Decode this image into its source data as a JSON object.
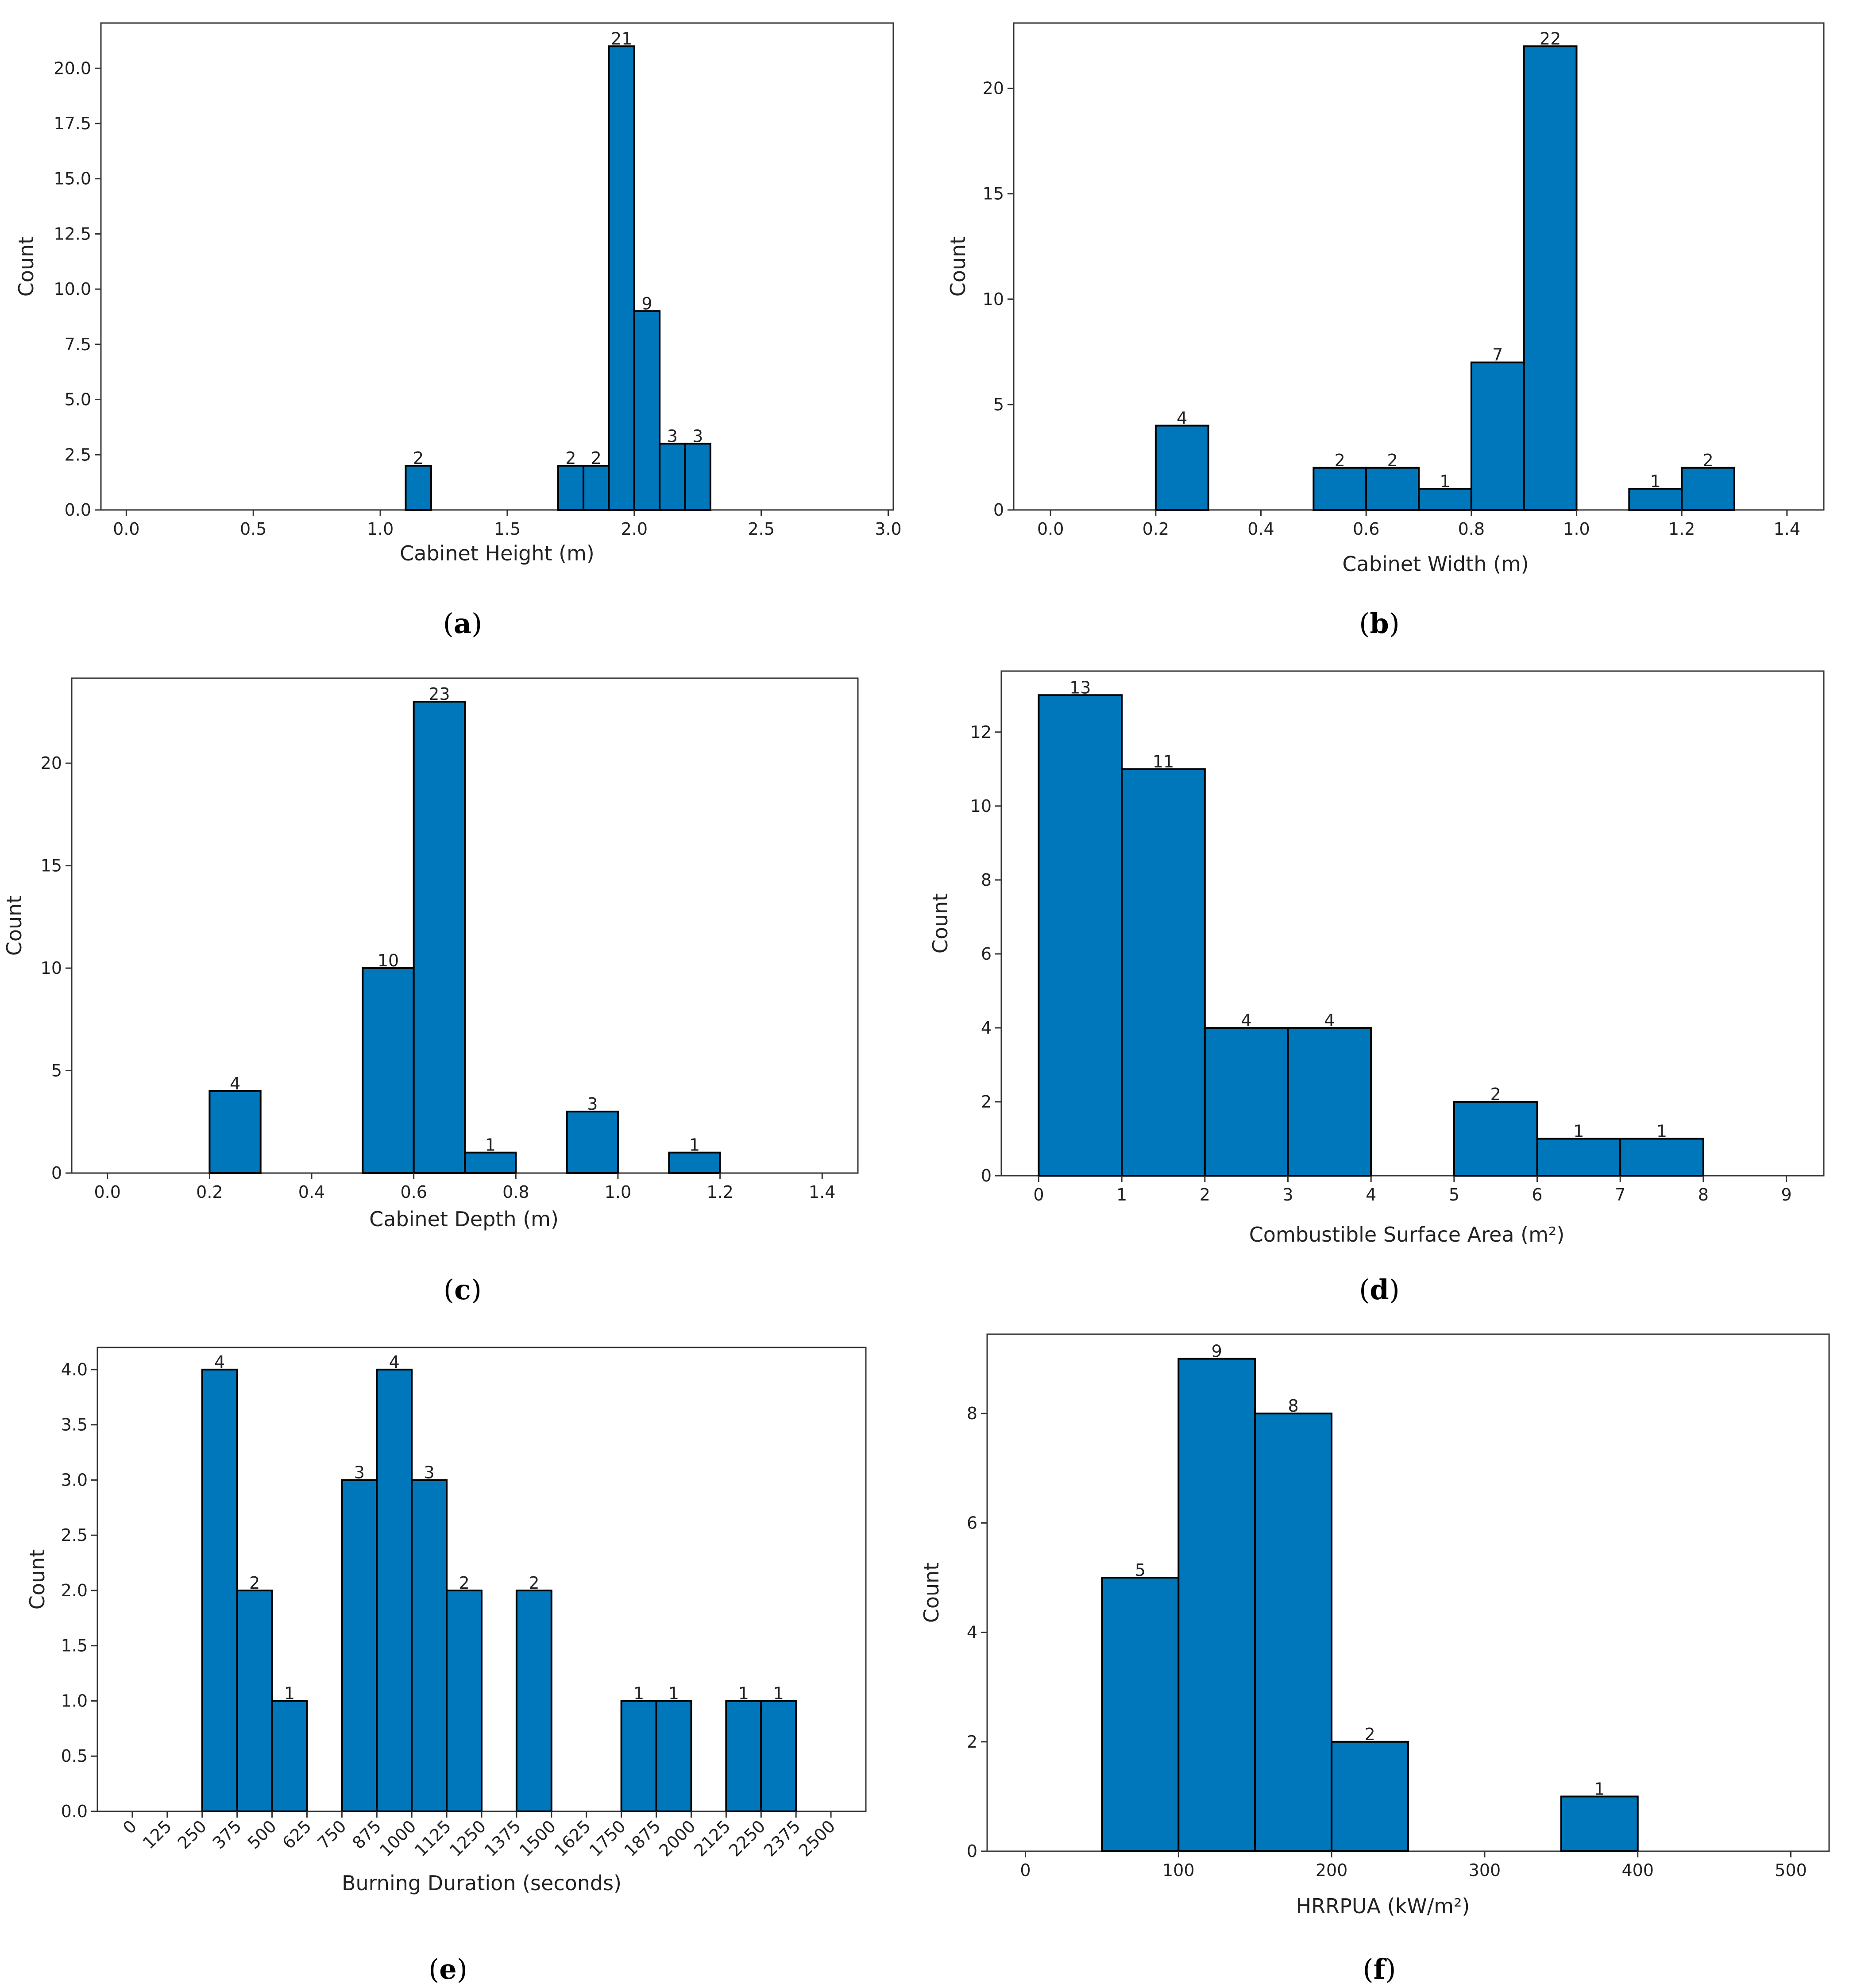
{
  "chart_data": [
    {
      "type": "bar",
      "panel": "a",
      "xlabel": "Cabinet Height (m)",
      "ylabel": "Count",
      "xlim": [
        -0.1,
        3.02
      ],
      "ylim": [
        0,
        21
      ],
      "xticks": [
        0.0,
        0.5,
        1.0,
        1.5,
        2.0,
        2.5,
        3.0
      ],
      "xtick_labels": [
        "0.0",
        "0.5",
        "1.0",
        "1.5",
        "2.0",
        "2.5",
        "3.0"
      ],
      "yticks": [
        0,
        2.5,
        5,
        7.5,
        10,
        12.5,
        15,
        17.5,
        20
      ],
      "ytick_labels": [
        "0.0",
        "2.5",
        "5.0",
        "7.5",
        "10.0",
        "12.5",
        "15.0",
        "17.5",
        "20.0"
      ],
      "bins": [
        {
          "x0": 1.1,
          "x1": 1.2,
          "count": 2,
          "label": "2"
        },
        {
          "x0": 1.7,
          "x1": 1.8,
          "count": 2,
          "label": "2"
        },
        {
          "x0": 1.8,
          "x1": 1.9,
          "count": 2,
          "label": "2"
        },
        {
          "x0": 1.9,
          "x1": 2.0,
          "count": 21,
          "label": "21"
        },
        {
          "x0": 2.0,
          "x1": 2.1,
          "count": 9,
          "label": "9"
        },
        {
          "x0": 2.1,
          "x1": 2.2,
          "count": 3,
          "label": "3"
        },
        {
          "x0": 2.2,
          "x1": 2.3,
          "count": 3,
          "label": "3"
        }
      ]
    },
    {
      "type": "bar",
      "panel": "b",
      "xlabel": "Cabinet Width (m)",
      "ylabel": "Count",
      "xlim": [
        -0.07,
        1.47
      ],
      "ylim": [
        0,
        22
      ],
      "xticks": [
        0.0,
        0.2,
        0.4,
        0.6,
        0.8,
        1.0,
        1.2,
        1.4
      ],
      "xtick_labels": [
        "0.0",
        "0.2",
        "0.4",
        "0.6",
        "0.8",
        "1.0",
        "1.2",
        "1.4"
      ],
      "yticks": [
        0,
        5,
        10,
        15,
        20
      ],
      "ytick_labels": [
        "0",
        "5",
        "10",
        "15",
        "20"
      ],
      "bins": [
        {
          "x0": 0.2,
          "x1": 0.3,
          "count": 4,
          "label": "4"
        },
        {
          "x0": 0.5,
          "x1": 0.6,
          "count": 2,
          "label": "2"
        },
        {
          "x0": 0.6,
          "x1": 0.7,
          "count": 2,
          "label": "2"
        },
        {
          "x0": 0.7,
          "x1": 0.8,
          "count": 1,
          "label": "1"
        },
        {
          "x0": 0.8,
          "x1": 0.9,
          "count": 7,
          "label": "7"
        },
        {
          "x0": 0.9,
          "x1": 1.0,
          "count": 22,
          "label": "22"
        },
        {
          "x0": 1.1,
          "x1": 1.2,
          "count": 1,
          "label": "1"
        },
        {
          "x0": 1.2,
          "x1": 1.3,
          "count": 2,
          "label": "2"
        }
      ]
    },
    {
      "type": "bar",
      "panel": "c",
      "xlabel": "Cabinet Depth (m)",
      "ylabel": "Count",
      "xlim": [
        -0.07,
        1.47
      ],
      "ylim": [
        0,
        23
      ],
      "xticks": [
        0.0,
        0.2,
        0.4,
        0.6,
        0.8,
        1.0,
        1.2,
        1.4
      ],
      "xtick_labels": [
        "0.0",
        "0.2",
        "0.4",
        "0.6",
        "0.8",
        "1.0",
        "1.2",
        "1.4"
      ],
      "yticks": [
        0,
        5,
        10,
        15,
        20
      ],
      "ytick_labels": [
        "0",
        "5",
        "10",
        "15",
        "20"
      ],
      "bins": [
        {
          "x0": 0.2,
          "x1": 0.3,
          "count": 4,
          "label": "4"
        },
        {
          "x0": 0.5,
          "x1": 0.6,
          "count": 10,
          "label": "10"
        },
        {
          "x0": 0.6,
          "x1": 0.7,
          "count": 23,
          "label": "23"
        },
        {
          "x0": 0.7,
          "x1": 0.8,
          "count": 1,
          "label": "1"
        },
        {
          "x0": 0.9,
          "x1": 1.0,
          "count": 3,
          "label": "3"
        },
        {
          "x0": 1.1,
          "x1": 1.2,
          "count": 1,
          "label": "1"
        }
      ]
    },
    {
      "type": "bar",
      "panel": "d",
      "xlabel": "Combustible Surface Area (m²)",
      "ylabel": "Count",
      "xlim": [
        -0.45,
        9.45
      ],
      "ylim": [
        0,
        13
      ],
      "xticks": [
        0,
        1,
        2,
        3,
        4,
        5,
        6,
        7,
        8,
        9
      ],
      "xtick_labels": [
        "0",
        "1",
        "2",
        "3",
        "4",
        "5",
        "6",
        "7",
        "8",
        "9"
      ],
      "yticks": [
        0,
        2,
        4,
        6,
        8,
        10,
        12
      ],
      "ytick_labels": [
        "0",
        "2",
        "4",
        "6",
        "8",
        "10",
        "12"
      ],
      "bins": [
        {
          "x0": 0,
          "x1": 1,
          "count": 13,
          "label": "13"
        },
        {
          "x0": 1,
          "x1": 2,
          "count": 11,
          "label": "11"
        },
        {
          "x0": 2,
          "x1": 3,
          "count": 4,
          "label": "4"
        },
        {
          "x0": 3,
          "x1": 4,
          "count": 4,
          "label": "4"
        },
        {
          "x0": 5,
          "x1": 6,
          "count": 2,
          "label": "2"
        },
        {
          "x0": 6,
          "x1": 7,
          "count": 1,
          "label": "1"
        },
        {
          "x0": 7,
          "x1": 8,
          "count": 1,
          "label": "1"
        }
      ]
    },
    {
      "type": "bar",
      "panel": "e",
      "xlabel": "Burning Duration (seconds)",
      "ylabel": "Count",
      "xlim": [
        -125,
        2625
      ],
      "ylim": [
        0,
        4
      ],
      "xticks": [
        0,
        125,
        250,
        375,
        500,
        625,
        750,
        875,
        1000,
        1125,
        1250,
        1375,
        1500,
        1625,
        1750,
        1875,
        2000,
        2125,
        2250,
        2375,
        2500
      ],
      "xtick_labels": [
        "0",
        "125",
        "250",
        "375",
        "500",
        "625",
        "750",
        "875",
        "1000",
        "1125",
        "1250",
        "1375",
        "1500",
        "1625",
        "1750",
        "1875",
        "2000",
        "2125",
        "2250",
        "2375",
        "2500"
      ],
      "yticks": [
        0,
        0.5,
        1,
        1.5,
        2,
        2.5,
        3,
        3.5,
        4
      ],
      "ytick_labels": [
        "0.0",
        "0.5",
        "1.0",
        "1.5",
        "2.0",
        "2.5",
        "3.0",
        "3.5",
        "4.0"
      ],
      "bins": [
        {
          "x0": 250,
          "x1": 375,
          "count": 4,
          "label": "4"
        },
        {
          "x0": 375,
          "x1": 500,
          "count": 2,
          "label": "2"
        },
        {
          "x0": 500,
          "x1": 625,
          "count": 1,
          "label": "1"
        },
        {
          "x0": 750,
          "x1": 875,
          "count": 3,
          "label": "3"
        },
        {
          "x0": 875,
          "x1": 1000,
          "count": 4,
          "label": "4"
        },
        {
          "x0": 1000,
          "x1": 1125,
          "count": 3,
          "label": "3"
        },
        {
          "x0": 1125,
          "x1": 1250,
          "count": 2,
          "label": "2"
        },
        {
          "x0": 1375,
          "x1": 1500,
          "count": 2,
          "label": "2"
        },
        {
          "x0": 1750,
          "x1": 1875,
          "count": 1,
          "label": "1"
        },
        {
          "x0": 1875,
          "x1": 2000,
          "count": 1,
          "label": "1"
        },
        {
          "x0": 2125,
          "x1": 2250,
          "count": 1,
          "label": "1"
        },
        {
          "x0": 2250,
          "x1": 2375,
          "count": 1,
          "label": "1"
        }
      ]
    },
    {
      "type": "bar",
      "panel": "f",
      "xlabel": "HRRPUA (kW/m²)",
      "ylabel": "Count",
      "xlim": [
        -25,
        525
      ],
      "ylim": [
        0,
        9
      ],
      "xticks": [
        0,
        100,
        200,
        300,
        400,
        500
      ],
      "xtick_labels": [
        "0",
        "100",
        "200",
        "300",
        "400",
        "500"
      ],
      "yticks": [
        0,
        2,
        4,
        6,
        8
      ],
      "ytick_labels": [
        "0",
        "2",
        "4",
        "6",
        "8"
      ],
      "bins": [
        {
          "x0": 50,
          "x1": 100,
          "count": 5,
          "label": "5"
        },
        {
          "x0": 100,
          "x1": 150,
          "count": 9,
          "label": "9"
        },
        {
          "x0": 150,
          "x1": 200,
          "count": 8,
          "label": "8"
        },
        {
          "x0": 200,
          "x1": 250,
          "count": 2,
          "label": "2"
        },
        {
          "x0": 350,
          "x1": 400,
          "count": 1,
          "label": "1"
        }
      ]
    }
  ],
  "captions": [
    {
      "open": "(",
      "letter": "a",
      "close": ")"
    },
    {
      "open": "(",
      "letter": "b",
      "close": ")"
    },
    {
      "open": "(",
      "letter": "c",
      "close": ")"
    },
    {
      "open": "(",
      "letter": "d",
      "close": ")"
    },
    {
      "open": "(",
      "letter": "e",
      "close": ")"
    },
    {
      "open": "(",
      "letter": "f",
      "close": ")"
    }
  ]
}
